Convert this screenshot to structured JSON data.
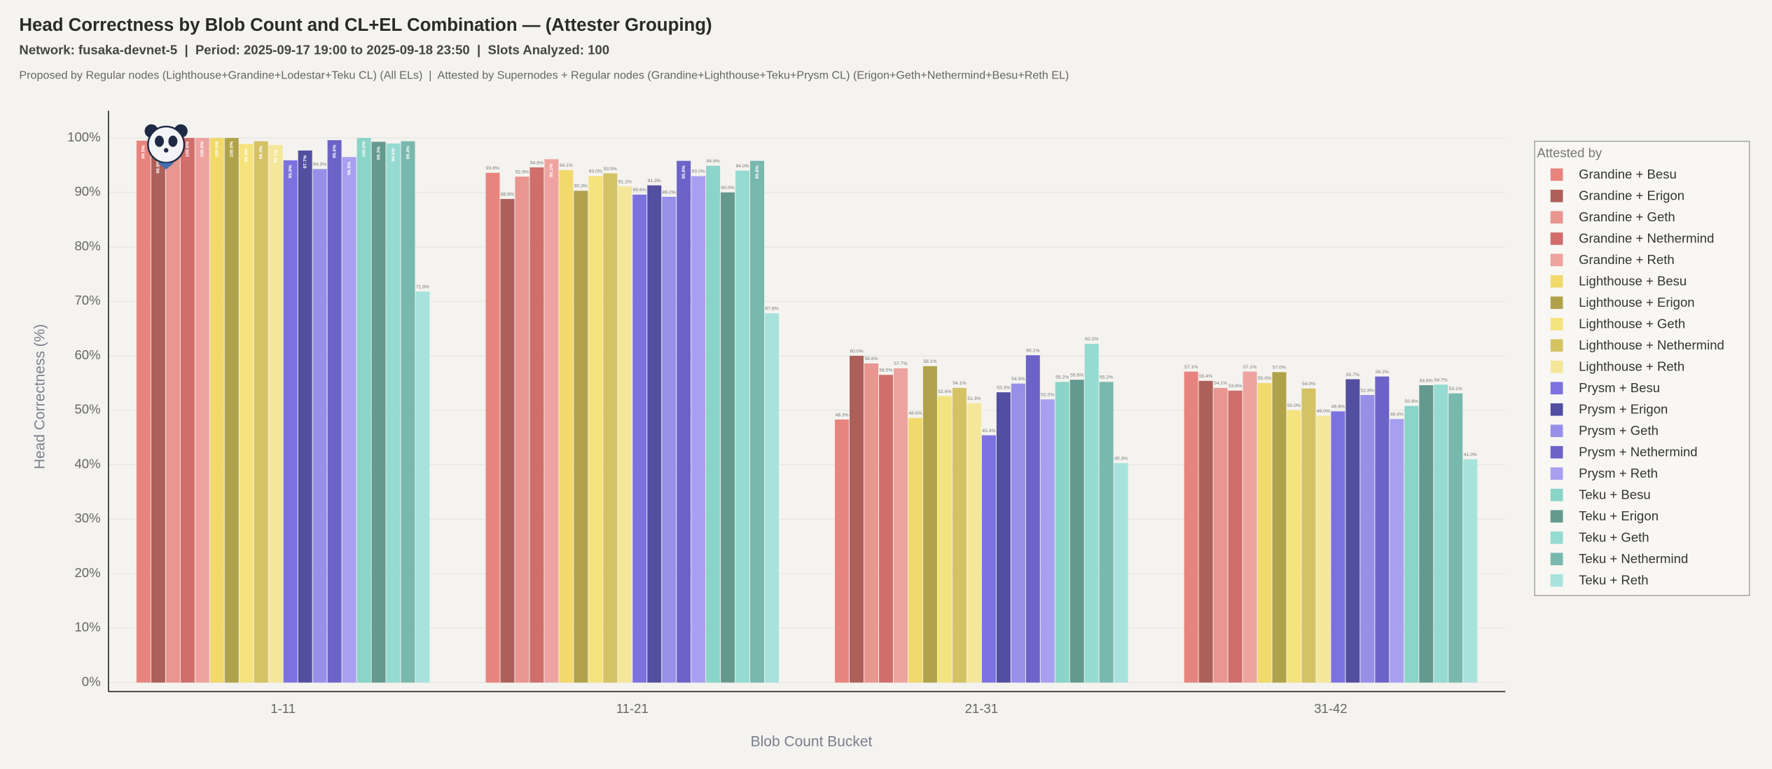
{
  "chart_data": {
    "type": "bar",
    "title": "Head Correctness by Blob Count and CL+EL Combination — (Attester Grouping)",
    "subtitle": "Network: fusaka-devnet-5  |  Period: 2025-09-17 19:00 to 2025-09-18 23:50  |  Slots Analyzed: 100",
    "note": "Proposed by Regular nodes (Lighthouse+Grandine+Lodestar+Teku CL) (All ELs)  |  Attested by Supernodes + Regular nodes (Grandine+Lighthouse+Teku+Prysm CL) (Erigon+Geth+Nethermind+Besu+Reth EL)",
    "x_label": "Blob Count Bucket",
    "y_label": "Head Correctness (%)",
    "legend_title": "Attested by",
    "categories": [
      "1-11",
      "11-21",
      "21-31",
      "31-42"
    ],
    "ylim": [
      0,
      105
    ],
    "yticks": [
      {
        "value": 0,
        "label": "0%"
      },
      {
        "value": 10,
        "label": "10%"
      },
      {
        "value": 20,
        "label": "20%"
      },
      {
        "value": 30,
        "label": "30%"
      },
      {
        "value": 40,
        "label": "40%"
      },
      {
        "value": 50,
        "label": "50%"
      },
      {
        "value": 60,
        "label": "60%"
      },
      {
        "value": 70,
        "label": "70%"
      },
      {
        "value": 80,
        "label": "80%"
      },
      {
        "value": 90,
        "label": "90%"
      },
      {
        "value": 100,
        "label": "100%"
      }
    ],
    "grid": true,
    "series": [
      {
        "name": "Grandine + Besu",
        "color": "#e8847e",
        "values": [
          99.5,
          93.6,
          48.3,
          57.1
        ],
        "value_labels": [
          "99.5%",
          "93.6%",
          "48.3%",
          "57.1%"
        ]
      },
      {
        "name": "Grandine + Erigon",
        "color": "#ad5f5a",
        "values": [
          96.8,
          88.8,
          60.0,
          55.4
        ],
        "value_labels": [
          "96.8%",
          "88.8%",
          "60.0%",
          "55.4%"
        ]
      },
      {
        "name": "Grandine + Geth",
        "color": "#e99590",
        "values": [
          99.0,
          92.9,
          58.6,
          54.1
        ],
        "value_labels": [
          "99.0%",
          "92.9%",
          "58.6%",
          "54.1%"
        ]
      },
      {
        "name": "Grandine + Nethermind",
        "color": "#cf6e6b",
        "values": [
          100.0,
          94.6,
          56.5,
          53.6
        ],
        "value_labels": [
          "100.0%",
          "94.6%",
          "56.5%",
          "53.6%"
        ]
      },
      {
        "name": "Grandine + Reth",
        "color": "#eea3a0",
        "values": [
          100.0,
          96.1,
          57.7,
          57.1
        ],
        "value_labels": [
          "100.0%",
          "96.1%",
          "57.7%",
          "57.1%"
        ]
      },
      {
        "name": "Lighthouse + Besu",
        "color": "#f2d96b",
        "values": [
          100.0,
          94.1,
          48.6,
          55.0
        ],
        "value_labels": [
          "100.0%",
          "94.1%",
          "48.6%",
          "55.0%"
        ]
      },
      {
        "name": "Lighthouse + Erigon",
        "color": "#b0a24a",
        "values": [
          100.0,
          90.3,
          58.1,
          57.0
        ],
        "value_labels": [
          "100.0%",
          "90.3%",
          "58.1%",
          "57.0%"
        ]
      },
      {
        "name": "Lighthouse + Geth",
        "color": "#f5e37d",
        "values": [
          98.9,
          93.0,
          52.6,
          50.0
        ],
        "value_labels": [
          "98.9%",
          "93.0%",
          "52.6%",
          "50.0%"
        ]
      },
      {
        "name": "Lighthouse + Nethermind",
        "color": "#d4c265",
        "values": [
          99.4,
          93.5,
          54.1,
          54.0
        ],
        "value_labels": [
          "99.4%",
          "93.5%",
          "54.1%",
          "54.0%"
        ]
      },
      {
        "name": "Lighthouse + Reth",
        "color": "#f5e79a",
        "values": [
          98.7,
          91.1,
          51.3,
          49.0
        ],
        "value_labels": [
          "98.7%",
          "91.1%",
          "51.3%",
          "49.0%"
        ]
      },
      {
        "name": "Prysm + Besu",
        "color": "#7b72e0",
        "values": [
          95.9,
          89.6,
          45.4,
          49.8
        ],
        "value_labels": [
          "95.9%",
          "89.6%",
          "45.4%",
          "49.8%"
        ]
      },
      {
        "name": "Prysm + Erigon",
        "color": "#524ea0",
        "values": [
          97.7,
          91.3,
          53.3,
          55.7
        ],
        "value_labels": [
          "97.7%",
          "91.3%",
          "53.3%",
          "55.7%"
        ]
      },
      {
        "name": "Prysm + Geth",
        "color": "#9690e8",
        "values": [
          94.3,
          89.2,
          54.9,
          52.8
        ],
        "value_labels": [
          "94.3%",
          "89.2%",
          "54.9%",
          "52.8%"
        ]
      },
      {
        "name": "Prysm + Nethermind",
        "color": "#6c63c8",
        "values": [
          99.6,
          95.8,
          60.1,
          56.2
        ],
        "value_labels": [
          "99.6%",
          "95.8%",
          "60.1%",
          "56.2%"
        ]
      },
      {
        "name": "Prysm + Reth",
        "color": "#a89ff0",
        "values": [
          96.5,
          93.0,
          52.0,
          48.4
        ],
        "value_labels": [
          "96.5%",
          "93.0%",
          "52.0%",
          "48.4%"
        ]
      },
      {
        "name": "Teku + Besu",
        "color": "#8ad4c8",
        "values": [
          100.0,
          94.9,
          55.2,
          50.8
        ],
        "value_labels": [
          "100.0%",
          "94.9%",
          "55.2%",
          "50.8%"
        ]
      },
      {
        "name": "Teku + Erigon",
        "color": "#64998f",
        "values": [
          99.3,
          90.0,
          55.6,
          54.6
        ],
        "value_labels": [
          "99.3%",
          "90.0%",
          "55.6%",
          "54.6%"
        ]
      },
      {
        "name": "Teku + Geth",
        "color": "#95dbd2",
        "values": [
          99.0,
          94.0,
          62.2,
          54.7
        ],
        "value_labels": [
          "99.0%",
          "94.0%",
          "62.2%",
          "54.7%"
        ]
      },
      {
        "name": "Teku + Nethermind",
        "color": "#78b8ad",
        "values": [
          99.4,
          95.8,
          55.2,
          53.1
        ],
        "value_labels": [
          "99.4%",
          "95.8%",
          "55.2%",
          "53.1%"
        ]
      },
      {
        "name": "Teku + Reth",
        "color": "#a8e2dc",
        "values": [
          71.8,
          67.8,
          40.3,
          41.0
        ],
        "value_labels": [
          "71.8%",
          "67.8%",
          "40.3%",
          "41.0%"
        ]
      }
    ]
  }
}
